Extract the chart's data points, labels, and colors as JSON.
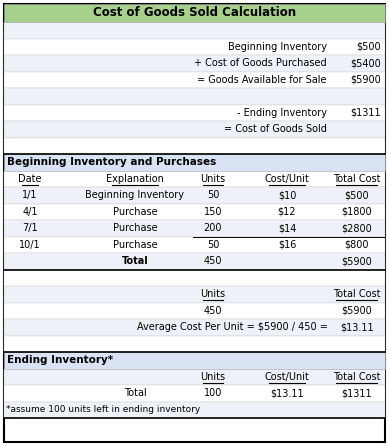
{
  "title": "Cost of Goods Sold Calculation",
  "title_bg": "#a8d08d",
  "section_bg": "#dae3f3",
  "row_alt_bg": "#dce6f1",
  "white": "#ffffff",
  "light_gray_row": "#eef2f8",
  "cogs_rows": [
    {
      "label": "Beginning Inventory",
      "value": "$500"
    },
    {
      "label": "+ Cost of Goods Purchased",
      "value": "$5400"
    },
    {
      "label": "= Goods Available for Sale",
      "value": "$5900"
    },
    {
      "label": "",
      "value": ""
    },
    {
      "label": "- Ending Inventory",
      "value": "$1311"
    },
    {
      "label": "= Cost of Goods Sold",
      "value": ""
    }
  ],
  "purchases_header": "Beginning Inventory and Purchases",
  "purchases_cols": [
    "Date",
    "Explanation",
    "Units",
    "Cost/Unit",
    "Total Cost"
  ],
  "purchases_data": [
    [
      "1/1",
      "Beginning Inventory",
      "50",
      "$10",
      "$500"
    ],
    [
      "4/1",
      "Purchase",
      "150",
      "$12",
      "$1800"
    ],
    [
      "7/1",
      "Purchase",
      "200",
      "$14",
      "$2800"
    ],
    [
      "10/1",
      "Purchase",
      "50",
      "$16",
      "$800"
    ],
    [
      "",
      "Total",
      "450",
      "",
      "$5900"
    ]
  ],
  "avg_formula": "Average Cost Per Unit = $5900 / 450 =",
  "avg_result": "$13.11",
  "ending_header": "Ending Inventory*",
  "ending_cols": [
    "Units",
    "Cost/Unit",
    "Total Cost"
  ],
  "ending_total": [
    "Total",
    "100",
    "$13.11",
    "$1311"
  ],
  "ending_note": "*assume 100 units left in ending inventory"
}
